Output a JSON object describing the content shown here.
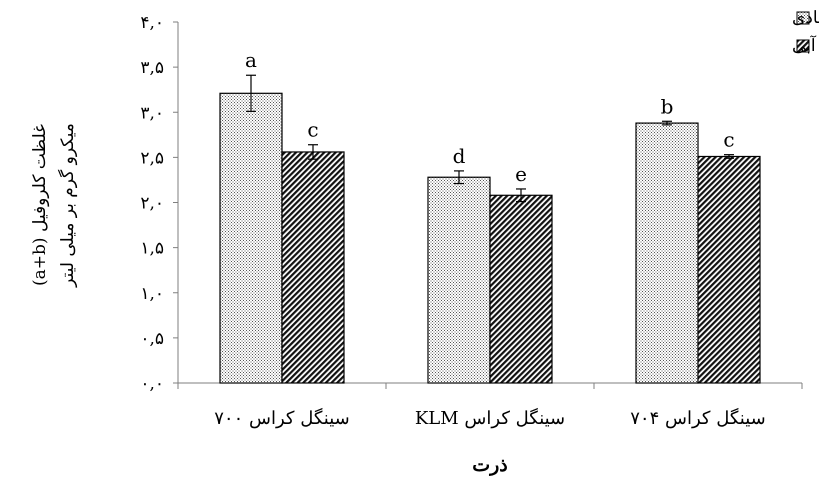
{
  "chart_data": {
    "type": "bar",
    "categories": [
      "سینگل کراس ۷۰۰",
      "سینگل کراس KLM",
      "سینگل کراس ۷۰۴"
    ],
    "series": [
      {
        "name": "آبیاری عادی",
        "values": [
          3.21,
          2.28,
          2.88
        ],
        "errors": [
          0.2,
          0.07,
          0.02
        ],
        "letters": [
          "a",
          "d",
          "b"
        ],
        "pattern": "dots"
      },
      {
        "name": "تنش کم آبی",
        "values": [
          2.56,
          2.08,
          2.51
        ],
        "errors": [
          0.08,
          0.07,
          0.02
        ],
        "letters": [
          "c",
          "e",
          "c"
        ],
        "pattern": "hatch"
      }
    ],
    "ylim": [
      0,
      4
    ],
    "yticks": [
      "۰,۰",
      "۰,۵",
      "۱,۰",
      "۱,۵",
      "۲,۰",
      "۲,۵",
      "۳,۰",
      "۳,۵",
      "۴,۰"
    ],
    "xlabel": "ذرت",
    "ylabel_line1": "غلظت کلروفیل (a+b)",
    "ylabel_line2": "میکرو گرم بر میلی لیتر",
    "legend_position": "top-right",
    "grid": false
  }
}
